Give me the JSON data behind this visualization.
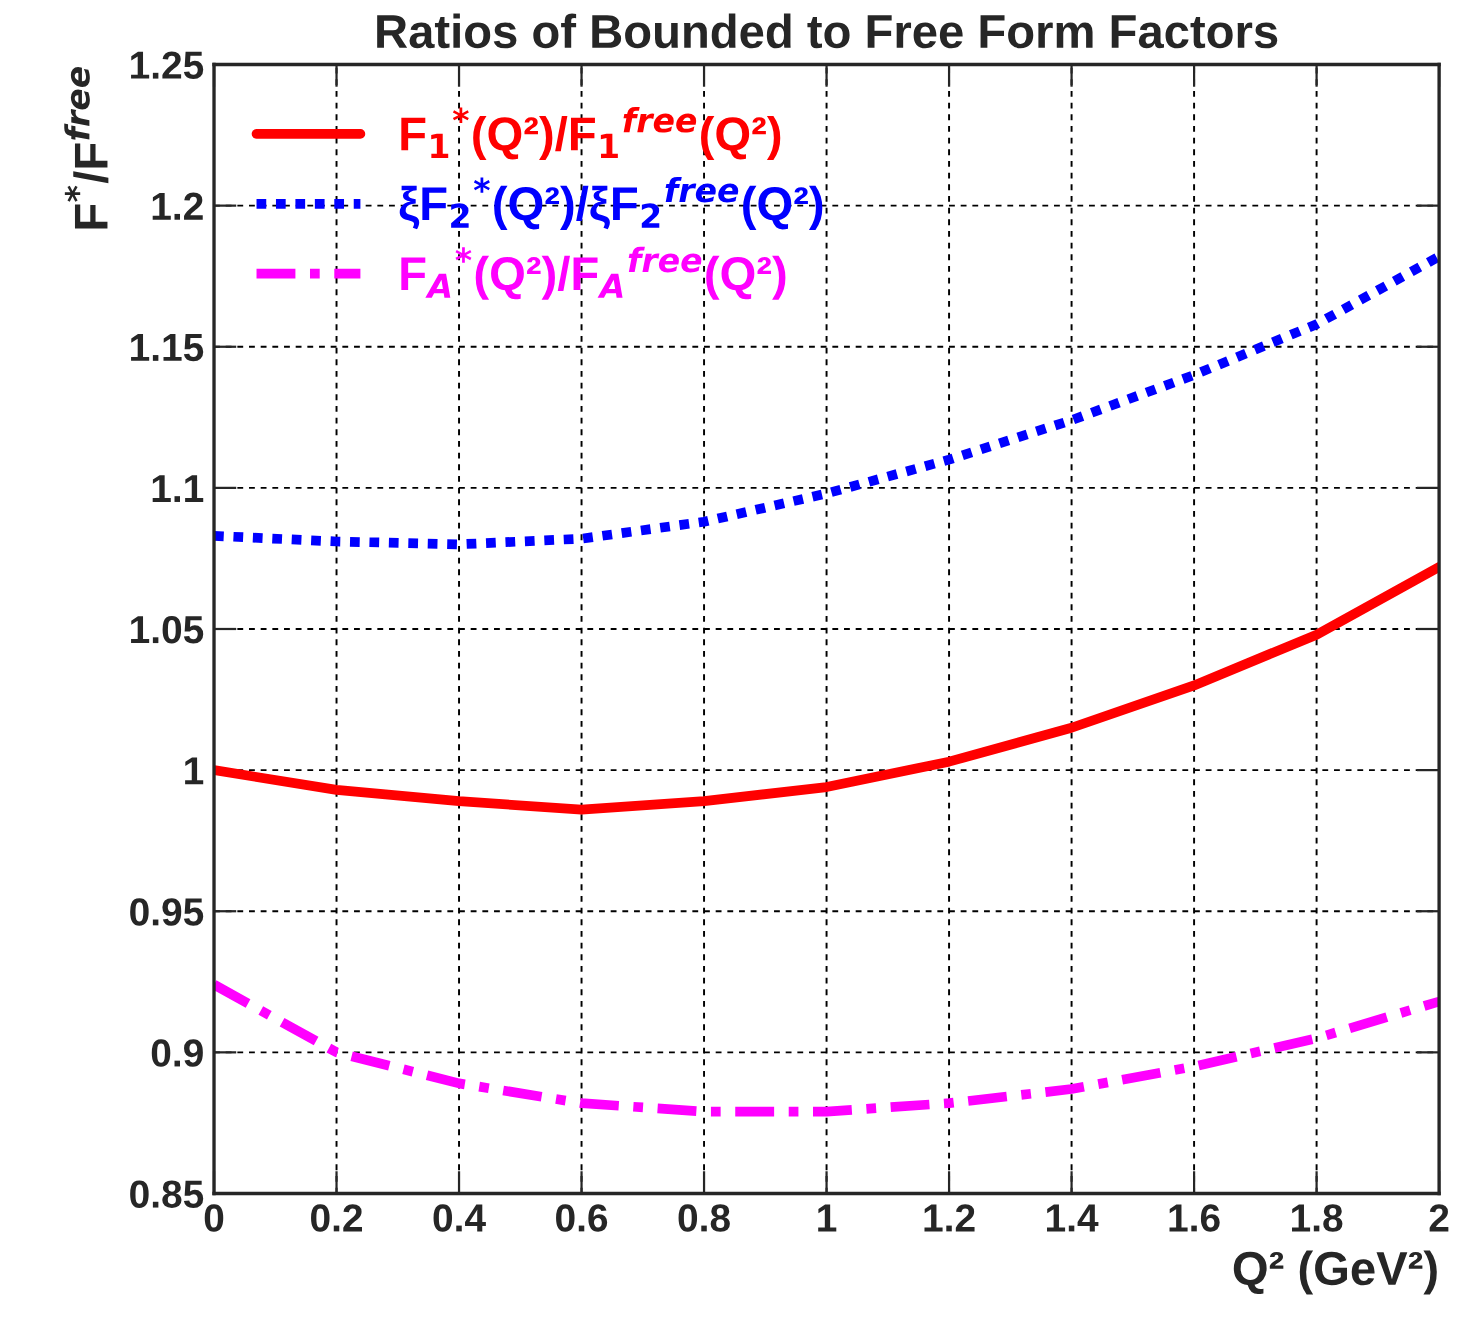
{
  "chart_data": {
    "type": "line",
    "title": "Ratios of Bounded to Free Form Factors",
    "xlabel": "Q² (GeV²)",
    "ylabel": "F$^{*}$/F$^{free}$",
    "x": [
      0,
      0.2,
      0.4,
      0.6,
      0.8,
      1.0,
      1.2,
      1.4,
      1.6,
      1.8,
      2.0
    ],
    "series": [
      {
        "name": "F$_{1}$$^{*}$(Q²)/F$_{1}$$^{free}$(Q²)",
        "color": "#ff0000",
        "line_style": "solid",
        "values": [
          1.0,
          0.993,
          0.989,
          0.986,
          0.989,
          0.994,
          1.003,
          1.015,
          1.03,
          1.048,
          1.072
        ]
      },
      {
        "name": "ξF$_{2}$$^{*}$(Q²)/ξF$_{2}$$^{free}$(Q²)",
        "color": "#0000ff",
        "line_style": "dotted",
        "values": [
          1.083,
          1.081,
          1.08,
          1.082,
          1.088,
          1.098,
          1.11,
          1.124,
          1.14,
          1.158,
          1.182
        ]
      },
      {
        "name": "F$_{A}$$^{*}$(Q²)/F$_{A}$$^{free}$(Q²)",
        "color": "#ff00ff",
        "line_style": "dashdot",
        "values": [
          0.924,
          0.9,
          0.889,
          0.882,
          0.879,
          0.879,
          0.882,
          0.887,
          0.895,
          0.905,
          0.918
        ]
      }
    ],
    "xlim": [
      0,
      2
    ],
    "xticks": [
      0,
      0.2,
      0.4,
      0.6,
      0.8,
      1,
      1.2,
      1.4,
      1.6,
      1.8,
      2
    ],
    "ylim": [
      0.85,
      1.25
    ],
    "yticks": [
      0.85,
      0.9,
      0.95,
      1,
      1.05,
      1.1,
      1.15,
      1.2,
      1.25
    ],
    "grid": true,
    "legend": "top left"
  }
}
